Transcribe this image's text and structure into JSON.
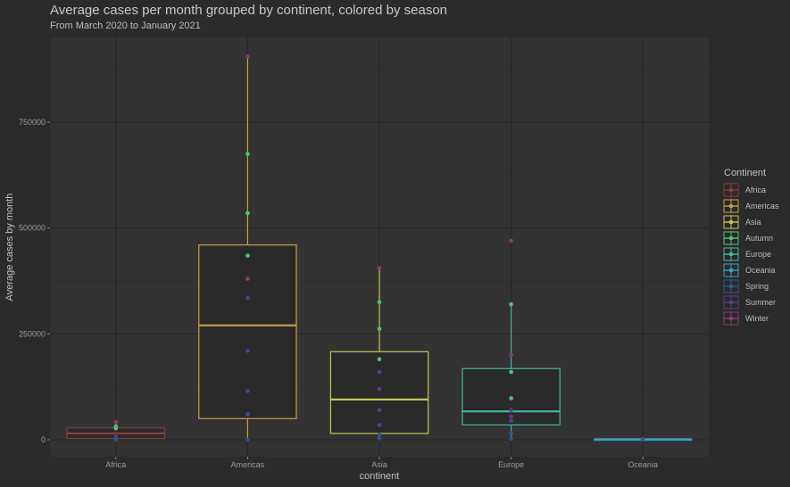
{
  "chart_data": {
    "type": "boxplot",
    "title": "Average cases per month grouped by continent, colored by season",
    "subtitle": "From March 2020 to January 2021",
    "xlabel": "continent",
    "ylabel": "Average cases by month",
    "ylim": [
      -40000,
      950000
    ],
    "yticks": [
      0,
      250000,
      500000,
      750000
    ],
    "ytick_labels": [
      "0",
      "250000",
      "500000",
      "750000"
    ],
    "grid": true,
    "legend": {
      "title": "Continent",
      "position": "right",
      "entries": [
        {
          "label": "Africa",
          "color": "#8a3b3b"
        },
        {
          "label": "Americas",
          "color": "#c8a043"
        },
        {
          "label": "Asia",
          "color": "#c5c454"
        },
        {
          "label": "Autumn",
          "color": "#4ec27a"
        },
        {
          "label": "Europe",
          "color": "#44b8a5"
        },
        {
          "label": "Oceania",
          "color": "#3aa2c4"
        },
        {
          "label": "Spring",
          "color": "#34548f"
        },
        {
          "label": "Summer",
          "color": "#5c3a8e"
        },
        {
          "label": "Winter",
          "color": "#8e3a6f"
        }
      ]
    },
    "categories": [
      "Africa",
      "Americas",
      "Asia",
      "Europe",
      "Oceania"
    ],
    "boxes": [
      {
        "category": "Africa",
        "color": "#8a3b3b",
        "q1": 3000,
        "median": 15000,
        "q3": 28000,
        "whisker_low": 0,
        "whisker_high": 40000
      },
      {
        "category": "Americas",
        "color": "#c8a043",
        "q1": 50000,
        "median": 270000,
        "q3": 460000,
        "whisker_low": 0,
        "whisker_high": 905000
      },
      {
        "category": "Asia",
        "color": "#c5c454",
        "q1": 15000,
        "median": 95000,
        "q3": 208000,
        "whisker_low": 0,
        "whisker_high": 405000
      },
      {
        "category": "Europe",
        "color": "#44b8a5",
        "q1": 35000,
        "median": 67000,
        "q3": 168000,
        "whisker_low": 0,
        "whisker_high": 320000
      },
      {
        "category": "Oceania",
        "color": "#3aa2c4",
        "q1": 0,
        "median": 1000,
        "q3": 2000,
        "whisker_low": 0,
        "whisker_high": 3000
      }
    ],
    "points": [
      {
        "category": "Africa",
        "season": "Autumn",
        "y": 32000
      },
      {
        "category": "Africa",
        "season": "Autumn",
        "y": 27000
      },
      {
        "category": "Africa",
        "season": "Winter",
        "y": 42000
      },
      {
        "category": "Africa",
        "season": "Summer",
        "y": 8000
      },
      {
        "category": "Africa",
        "season": "Spring",
        "y": 1000
      },
      {
        "category": "Americas",
        "season": "Winter",
        "y": 905000
      },
      {
        "category": "Americas",
        "season": "Autumn",
        "y": 675000
      },
      {
        "category": "Americas",
        "season": "Autumn",
        "y": 535000
      },
      {
        "category": "Americas",
        "season": "Autumn",
        "y": 435000
      },
      {
        "category": "Americas",
        "season": "Winter",
        "y": 380000
      },
      {
        "category": "Americas",
        "season": "Summer",
        "y": 335000
      },
      {
        "category": "Americas",
        "season": "Summer",
        "y": 210000
      },
      {
        "category": "Americas",
        "season": "Summer",
        "y": 115000
      },
      {
        "category": "Americas",
        "season": "Spring",
        "y": 60000
      },
      {
        "category": "Americas",
        "season": "Spring",
        "y": 0
      },
      {
        "category": "Asia",
        "season": "Winter",
        "y": 405000
      },
      {
        "category": "Asia",
        "season": "Autumn",
        "y": 325000
      },
      {
        "category": "Asia",
        "season": "Autumn",
        "y": 262000
      },
      {
        "category": "Asia",
        "season": "Autumn",
        "y": 190000
      },
      {
        "category": "Asia",
        "season": "Summer",
        "y": 160000
      },
      {
        "category": "Asia",
        "season": "Summer",
        "y": 120000
      },
      {
        "category": "Asia",
        "season": "Summer",
        "y": 70000
      },
      {
        "category": "Asia",
        "season": "Summer",
        "y": 35000
      },
      {
        "category": "Asia",
        "season": "Spring",
        "y": 12000
      },
      {
        "category": "Asia",
        "season": "Spring",
        "y": 3000
      },
      {
        "category": "Europe",
        "season": "Winter",
        "y": 470000
      },
      {
        "category": "Europe",
        "season": "Autumn",
        "y": 320000
      },
      {
        "category": "Europe",
        "season": "Winter",
        "y": 200000
      },
      {
        "category": "Europe",
        "season": "Autumn",
        "y": 160000
      },
      {
        "category": "Europe",
        "season": "Autumn",
        "y": 98000
      },
      {
        "category": "Europe",
        "season": "Summer",
        "y": 70000
      },
      {
        "category": "Europe",
        "season": "Summer",
        "y": 55000
      },
      {
        "category": "Europe",
        "season": "Summer",
        "y": 45000
      },
      {
        "category": "Europe",
        "season": "Spring",
        "y": 15000
      },
      {
        "category": "Europe",
        "season": "Spring",
        "y": 2000
      },
      {
        "category": "Oceania",
        "season": "Winter",
        "y": 2000
      },
      {
        "category": "Oceania",
        "season": "Spring",
        "y": 0
      }
    ]
  }
}
